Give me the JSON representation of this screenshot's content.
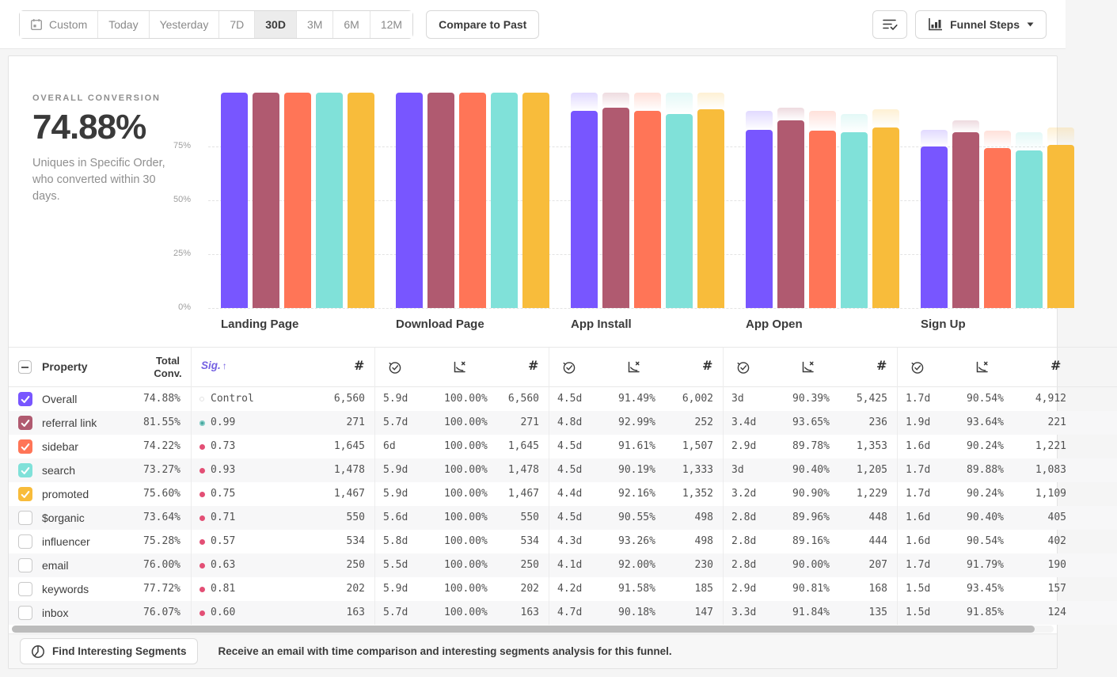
{
  "toolbar": {
    "date_ranges": [
      "Custom",
      "Today",
      "Yesterday",
      "7D",
      "30D",
      "3M",
      "6M",
      "12M"
    ],
    "selected_range": "30D",
    "compare_button": "Compare to Past",
    "view_button": "Funnel Steps"
  },
  "summary": {
    "label": "OVERALL CONVERSION",
    "value": "74.88%",
    "description": "Uniques in Specific Order, who converted within 30 days."
  },
  "chart_data": {
    "type": "bar",
    "title": "",
    "xlabel": "",
    "ylabel": "",
    "categories": [
      "Landing Page",
      "Download Page",
      "App Install",
      "App Open",
      "Sign Up"
    ],
    "ytick_labels": [
      "75%",
      "50%",
      "25%",
      "0%"
    ],
    "yticks": [
      75,
      50,
      25,
      0
    ],
    "ylim": [
      0,
      100
    ],
    "grid": "dashed-horizontal",
    "legend": "none",
    "series": [
      {
        "name": "Overall",
        "color": "#7856FF",
        "cumulative_pct": [
          100,
          100,
          91.49,
          82.7,
          74.88
        ]
      },
      {
        "name": "referral link",
        "color": "#B05A70",
        "cumulative_pct": [
          100,
          100,
          92.99,
          87.08,
          81.55
        ]
      },
      {
        "name": "sidebar",
        "color": "#FF7557",
        "cumulative_pct": [
          100,
          100,
          91.61,
          82.25,
          74.22
        ]
      },
      {
        "name": "search",
        "color": "#80E1D9",
        "cumulative_pct": [
          100,
          100,
          90.19,
          81.53,
          73.27
        ]
      },
      {
        "name": "promoted",
        "color": "#F8BC3B",
        "cumulative_pct": [
          100,
          100,
          92.16,
          83.77,
          75.6
        ]
      }
    ]
  },
  "table": {
    "property_header": "Property",
    "total_conv_header": "Total\nConv.",
    "sig_header": "Sig.",
    "sig_sort_arrow": "↑",
    "count_symbol": "#",
    "step_metric_icons": [
      "duration-icon",
      "conversion-rate-icon",
      "count-icon"
    ],
    "rows": [
      {
        "property": "Overall",
        "checked": true,
        "color": "#7856FF",
        "total": "74.88%",
        "sig": "Control",
        "sig_dot": "control",
        "landing_count": "6,560",
        "steps": [
          {
            "time": "5.9d",
            "rate": "100.00%",
            "count": "6,560"
          },
          {
            "time": "4.5d",
            "rate": "91.49%",
            "count": "6,002"
          },
          {
            "time": "3d",
            "rate": "90.39%",
            "count": "5,425"
          },
          {
            "time": "1.7d",
            "rate": "90.54%",
            "count": "4,912"
          }
        ]
      },
      {
        "property": "referral link",
        "checked": true,
        "color": "#B05A70",
        "total": "81.55%",
        "sig": "0.99",
        "sig_dot": "teal",
        "landing_count": "271",
        "steps": [
          {
            "time": "5.7d",
            "rate": "100.00%",
            "count": "271"
          },
          {
            "time": "4.8d",
            "rate": "92.99%",
            "count": "252"
          },
          {
            "time": "3.4d",
            "rate": "93.65%",
            "count": "236"
          },
          {
            "time": "1.9d",
            "rate": "93.64%",
            "count": "221"
          }
        ]
      },
      {
        "property": "sidebar",
        "checked": true,
        "color": "#FF7557",
        "total": "74.22%",
        "sig": "0.73",
        "sig_dot": "pink",
        "landing_count": "1,645",
        "steps": [
          {
            "time": "6d",
            "rate": "100.00%",
            "count": "1,645"
          },
          {
            "time": "4.5d",
            "rate": "91.61%",
            "count": "1,507"
          },
          {
            "time": "2.9d",
            "rate": "89.78%",
            "count": "1,353"
          },
          {
            "time": "1.6d",
            "rate": "90.24%",
            "count": "1,221"
          }
        ]
      },
      {
        "property": "search",
        "checked": true,
        "color": "#80E1D9",
        "total": "73.27%",
        "sig": "0.93",
        "sig_dot": "pink",
        "landing_count": "1,478",
        "steps": [
          {
            "time": "5.9d",
            "rate": "100.00%",
            "count": "1,478"
          },
          {
            "time": "4.5d",
            "rate": "90.19%",
            "count": "1,333"
          },
          {
            "time": "3d",
            "rate": "90.40%",
            "count": "1,205"
          },
          {
            "time": "1.7d",
            "rate": "89.88%",
            "count": "1,083"
          }
        ]
      },
      {
        "property": "promoted",
        "checked": true,
        "color": "#F8BC3B",
        "total": "75.60%",
        "sig": "0.75",
        "sig_dot": "pink",
        "landing_count": "1,467",
        "steps": [
          {
            "time": "5.9d",
            "rate": "100.00%",
            "count": "1,467"
          },
          {
            "time": "4.4d",
            "rate": "92.16%",
            "count": "1,352"
          },
          {
            "time": "3.2d",
            "rate": "90.90%",
            "count": "1,229"
          },
          {
            "time": "1.7d",
            "rate": "90.24%",
            "count": "1,109"
          }
        ]
      },
      {
        "property": "$organic",
        "checked": false,
        "color": "",
        "total": "73.64%",
        "sig": "0.71",
        "sig_dot": "pink",
        "landing_count": "550",
        "steps": [
          {
            "time": "5.6d",
            "rate": "100.00%",
            "count": "550"
          },
          {
            "time": "4.5d",
            "rate": "90.55%",
            "count": "498"
          },
          {
            "time": "2.8d",
            "rate": "89.96%",
            "count": "448"
          },
          {
            "time": "1.6d",
            "rate": "90.40%",
            "count": "405"
          }
        ]
      },
      {
        "property": "influencer",
        "checked": false,
        "color": "",
        "total": "75.28%",
        "sig": "0.57",
        "sig_dot": "pink",
        "landing_count": "534",
        "steps": [
          {
            "time": "5.8d",
            "rate": "100.00%",
            "count": "534"
          },
          {
            "time": "4.3d",
            "rate": "93.26%",
            "count": "498"
          },
          {
            "time": "2.8d",
            "rate": "89.16%",
            "count": "444"
          },
          {
            "time": "1.6d",
            "rate": "90.54%",
            "count": "402"
          }
        ]
      },
      {
        "property": "email",
        "checked": false,
        "color": "",
        "total": "76.00%",
        "sig": "0.63",
        "sig_dot": "pink",
        "landing_count": "250",
        "steps": [
          {
            "time": "5.5d",
            "rate": "100.00%",
            "count": "250"
          },
          {
            "time": "4.1d",
            "rate": "92.00%",
            "count": "230"
          },
          {
            "time": "2.8d",
            "rate": "90.00%",
            "count": "207"
          },
          {
            "time": "1.7d",
            "rate": "91.79%",
            "count": "190"
          }
        ]
      },
      {
        "property": "keywords",
        "checked": false,
        "color": "",
        "total": "77.72%",
        "sig": "0.81",
        "sig_dot": "pink",
        "landing_count": "202",
        "steps": [
          {
            "time": "5.9d",
            "rate": "100.00%",
            "count": "202"
          },
          {
            "time": "4.2d",
            "rate": "91.58%",
            "count": "185"
          },
          {
            "time": "2.9d",
            "rate": "90.81%",
            "count": "168"
          },
          {
            "time": "1.5d",
            "rate": "93.45%",
            "count": "157"
          }
        ]
      },
      {
        "property": "inbox",
        "checked": false,
        "color": "",
        "total": "76.07%",
        "sig": "0.60",
        "sig_dot": "pink",
        "landing_count": "163",
        "steps": [
          {
            "time": "5.7d",
            "rate": "100.00%",
            "count": "163"
          },
          {
            "time": "4.7d",
            "rate": "90.18%",
            "count": "147"
          },
          {
            "time": "3.3d",
            "rate": "91.84%",
            "count": "135"
          },
          {
            "time": "1.5d",
            "rate": "91.85%",
            "count": "124"
          }
        ]
      }
    ]
  },
  "footer": {
    "button": "Find Interesting Segments",
    "message": "Receive an email with time comparison and interesting segments analysis for this funnel."
  },
  "colors": {
    "series": [
      "#7856FF",
      "#B05A70",
      "#FF7557",
      "#80E1D9",
      "#F8BC3B"
    ],
    "sig_significant": "#4AA8A0",
    "sig_not_significant": "#E34F75",
    "sig_header": "#7461E2"
  }
}
